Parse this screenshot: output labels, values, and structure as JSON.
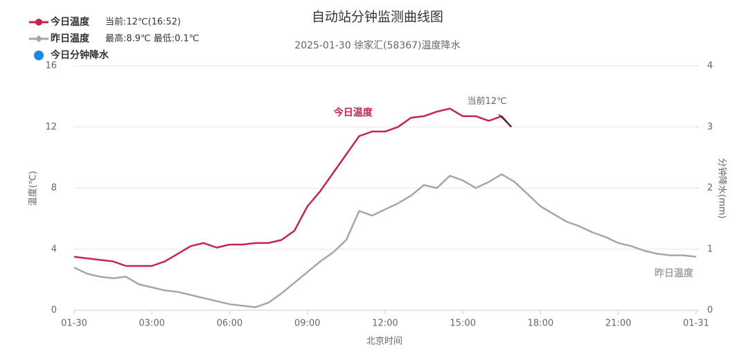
{
  "chart_data": {
    "type": "line",
    "title": "自动站分钟监测曲线图",
    "subtitle": "2025-01-30 徐家汇(58367)温度降水",
    "xlabel": "北京时间",
    "ylabel": "温度(℃)",
    "y2label": "分钟降水(mm)",
    "xlim": [
      0,
      24
    ],
    "xticks": [
      {
        "value": 0,
        "label": "01-30"
      },
      {
        "value": 3,
        "label": "03:00"
      },
      {
        "value": 6,
        "label": "06:00"
      },
      {
        "value": 9,
        "label": "09:00"
      },
      {
        "value": 12,
        "label": "12:00"
      },
      {
        "value": 15,
        "label": "15:00"
      },
      {
        "value": 18,
        "label": "18:00"
      },
      {
        "value": 21,
        "label": "21:00"
      },
      {
        "value": 24,
        "label": "01-31"
      }
    ],
    "ylim": [
      0,
      16
    ],
    "yticks": [
      0,
      4,
      8,
      12,
      16
    ],
    "y2lim": [
      0,
      4
    ],
    "y2ticks": [
      0,
      1,
      2,
      3,
      4
    ],
    "grid": true,
    "series": [
      {
        "name": "今日温度",
        "note": "当前:12℃(16:52)",
        "color": "#c8234a",
        "x": [
          0,
          0.5,
          1,
          1.5,
          2,
          2.5,
          3,
          3.5,
          4,
          4.5,
          5,
          5.5,
          6,
          6.5,
          7,
          7.5,
          8,
          8.5,
          9,
          9.5,
          10,
          10.5,
          11,
          11.5,
          12,
          12.5,
          13,
          13.5,
          14,
          14.5,
          15,
          15.5,
          16,
          16.5,
          16.87
        ],
        "values": [
          3.5,
          3.4,
          3.3,
          3.2,
          2.9,
          2.9,
          2.9,
          3.2,
          3.7,
          4.2,
          4.4,
          4.1,
          4.3,
          4.3,
          4.4,
          4.4,
          4.6,
          5.2,
          6.8,
          7.8,
          9.0,
          10.2,
          11.4,
          11.7,
          11.7,
          12.0,
          12.6,
          12.7,
          13.0,
          13.2,
          12.7,
          12.7,
          12.4,
          12.7,
          12.0
        ]
      },
      {
        "name": "昨日温度",
        "note": "最高:8.9℃ 最低:0.1℃",
        "color": "#a6a6a6",
        "x": [
          0,
          0.5,
          1,
          1.5,
          2,
          2.5,
          3,
          3.5,
          4,
          4.5,
          5,
          5.5,
          6,
          6.5,
          7,
          7.5,
          8,
          8.5,
          9,
          9.5,
          10,
          10.5,
          11,
          11.5,
          12,
          12.5,
          13,
          13.5,
          14,
          14.5,
          15,
          15.5,
          16,
          16.5,
          17,
          17.5,
          18,
          18.5,
          19,
          19.5,
          20,
          20.5,
          21,
          21.5,
          22,
          22.5,
          23,
          23.5,
          24
        ],
        "values": [
          2.8,
          2.4,
          2.2,
          2.1,
          2.2,
          1.7,
          1.5,
          1.3,
          1.2,
          1.0,
          0.8,
          0.6,
          0.4,
          0.3,
          0.2,
          0.5,
          1.1,
          1.8,
          2.5,
          3.2,
          3.8,
          4.6,
          6.5,
          6.2,
          6.6,
          7.0,
          7.5,
          8.2,
          8.0,
          8.8,
          8.5,
          8.0,
          8.4,
          8.9,
          8.4,
          7.6,
          6.8,
          6.3,
          5.8,
          5.5,
          5.1,
          4.8,
          4.4,
          4.2,
          3.9,
          3.7,
          3.6,
          3.6,
          3.5
        ]
      },
      {
        "name": "今日分钟降水",
        "color": "#1e88e5",
        "axis": "y2",
        "x": [],
        "values": []
      }
    ],
    "annotations": [
      {
        "text": "当前12℃",
        "x": 16.87,
        "y": 12.0
      }
    ]
  }
}
